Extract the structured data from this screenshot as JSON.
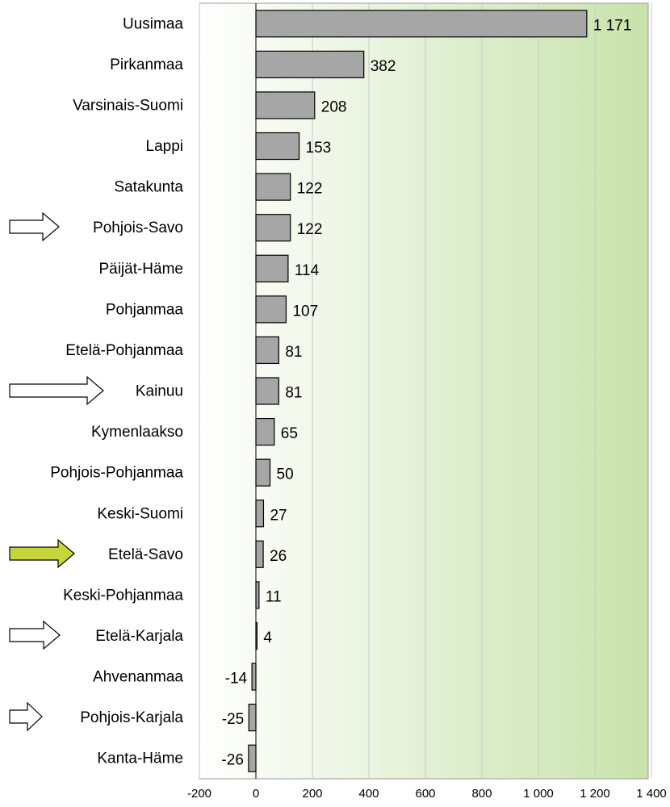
{
  "chart_data": {
    "type": "barh",
    "categories": [
      "Uusimaa",
      "Pirkanmaa",
      "Varsinais-Suomi",
      "Lappi",
      "Satakunta",
      "Pohjois-Savo",
      "Päijät-Häme",
      "Pohjanmaa",
      "Etelä-Pohjanmaa",
      "Kainuu",
      "Kymenlaakso",
      "Pohjois-Pohjanmaa",
      "Keski-Suomi",
      "Etelä-Savo",
      "Keski-Pohjanmaa",
      "Etelä-Karjala",
      "Ahvenanmaa",
      "Pohjois-Karjala",
      "Kanta-Häme"
    ],
    "values": [
      1171,
      382,
      208,
      153,
      122,
      122,
      114,
      107,
      81,
      81,
      65,
      50,
      27,
      26,
      11,
      4,
      -14,
      -25,
      -26
    ],
    "value_labels": [
      "1 171",
      "382",
      "208",
      "153",
      "122",
      "122",
      "114",
      "107",
      "81",
      "81",
      "65",
      "50",
      "27",
      "26",
      "11",
      "4",
      "-14",
      "-25",
      "-26"
    ],
    "color": "#a6a6a6",
    "xlim": [
      -200,
      1400
    ],
    "xticks": [
      -200,
      0,
      200,
      400,
      600,
      800,
      {
        "value": 1000,
        "label": "1 000"
      },
      {
        "value": 1200,
        "label": "1 200"
      },
      {
        "value": 1400,
        "label": "1 400"
      }
    ],
    "grid": true
  }
}
